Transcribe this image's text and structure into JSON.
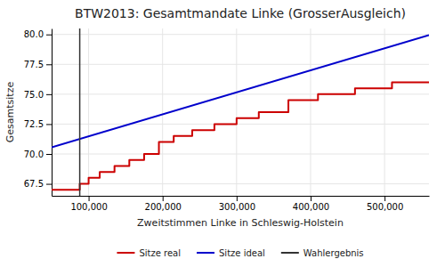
{
  "chart_data": {
    "type": "line",
    "title": "BTW2013: Gesamtmandate Linke (GrosserAusgleich)",
    "xlabel": "Zweitstimmen Linke in Schleswig-Holstein",
    "ylabel": "Gesamtsitze",
    "xlim": [
      50000,
      560000
    ],
    "ylim": [
      66.5,
      80.5
    ],
    "xticks": [
      {
        "value": 100000,
        "label": "100,000"
      },
      {
        "value": 200000,
        "label": "200,000"
      },
      {
        "value": 300000,
        "label": "300,000"
      },
      {
        "value": 400000,
        "label": "400,000"
      },
      {
        "value": 500000,
        "label": "500,000"
      }
    ],
    "yticks": [
      67.5,
      {
        "value": 70.0,
        "label": "70.0"
      },
      72.5,
      {
        "value": 75.0,
        "label": "75.0"
      },
      77.5,
      {
        "value": 80.0,
        "label": "80.0"
      }
    ],
    "grid": true,
    "legend": "bottom",
    "series": [
      {
        "name": "Sitze real",
        "color": "#cc0000",
        "x": [
          50000,
          88000,
          88000,
          100000,
          100000,
          115000,
          115000,
          135000,
          135000,
          155000,
          155000,
          175000,
          175000,
          195000,
          195000,
          215000,
          215000,
          240000,
          240000,
          270000,
          270000,
          300000,
          300000,
          330000,
          330000,
          370000,
          370000,
          410000,
          410000,
          460000,
          460000,
          510000,
          510000,
          560000
        ],
        "values": [
          67.0,
          67.0,
          67.5,
          67.5,
          68.0,
          68.0,
          68.5,
          68.5,
          69.0,
          69.0,
          69.5,
          69.5,
          70.0,
          70.0,
          71.0,
          71.0,
          71.5,
          71.5,
          72.0,
          72.0,
          72.5,
          72.5,
          73.0,
          73.0,
          73.5,
          73.5,
          74.5,
          74.5,
          75.0,
          75.0,
          75.5,
          75.5,
          76.0,
          76.0
        ]
      },
      {
        "name": "Sitze ideal",
        "color": "#0000cc",
        "x": [
          50000,
          560000
        ],
        "values": [
          70.55,
          79.95
        ]
      },
      {
        "name": "Wahlergebnis",
        "color": "#333333",
        "type": "vline",
        "x": [
          88000
        ]
      }
    ]
  }
}
